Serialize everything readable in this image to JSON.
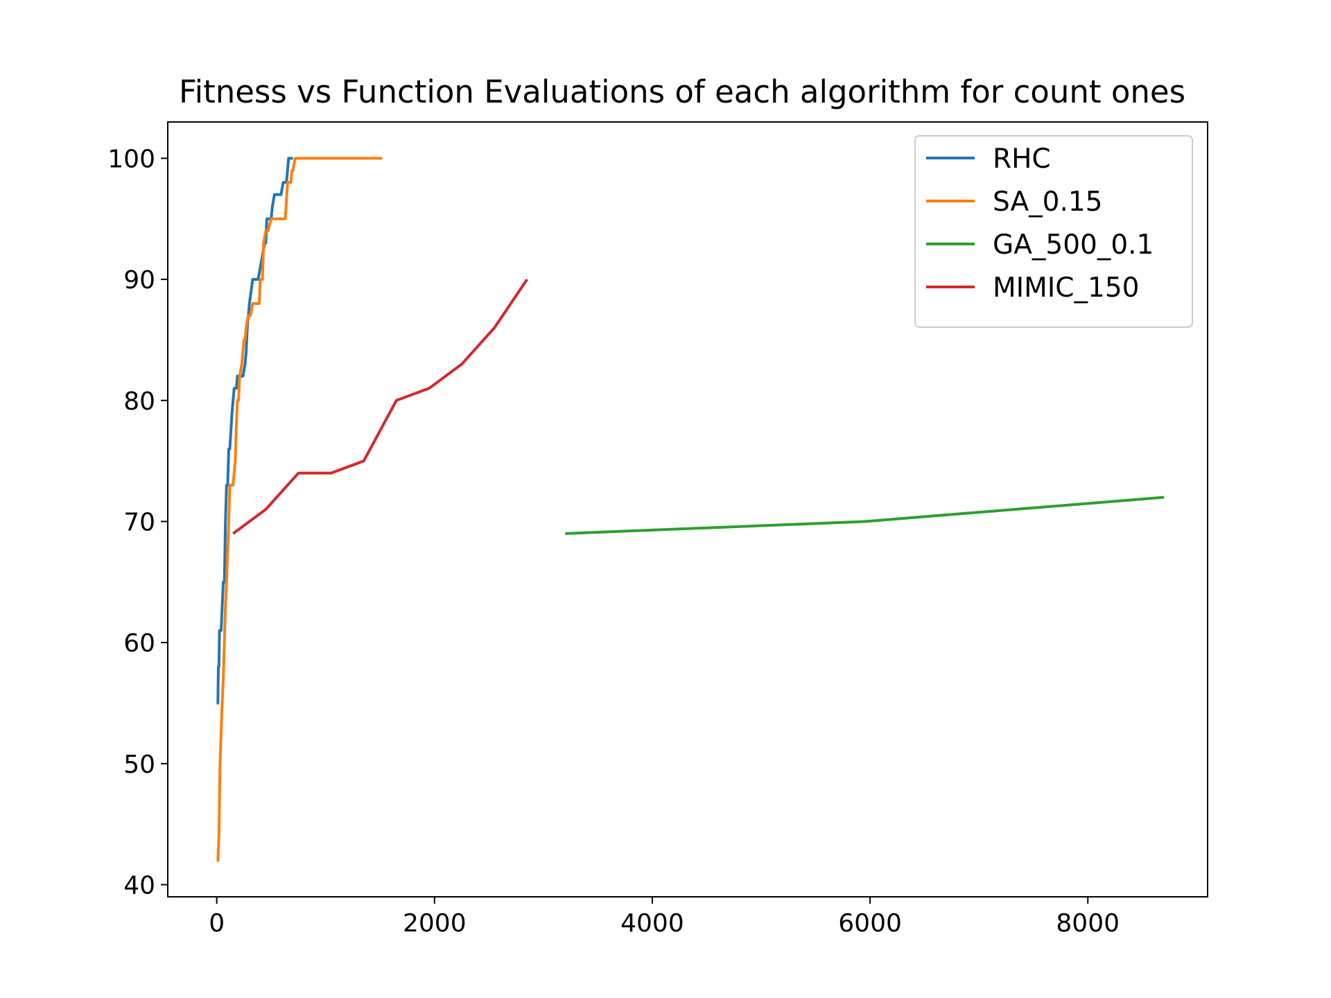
{
  "chart_data": {
    "type": "line",
    "title": "Fitness vs Function Evaluations of each algorithm for count ones",
    "xlabel": "",
    "ylabel": "",
    "xlim": [
      -450,
      9100
    ],
    "ylim": [
      39,
      103
    ],
    "x_ticks": [
      0,
      2000,
      4000,
      6000,
      8000
    ],
    "x_tick_labels": [
      "0",
      "2000",
      "4000",
      "6000",
      "8000"
    ],
    "y_ticks": [
      40,
      50,
      60,
      70,
      80,
      90,
      100
    ],
    "y_tick_labels": [
      "40",
      "50",
      "60",
      "70",
      "80",
      "90",
      "100"
    ],
    "grid": false,
    "legend": "top-right",
    "series": [
      {
        "name": "RHC",
        "color": "#1f77b4",
        "x": [
          0,
          10,
          15,
          20,
          25,
          40,
          50,
          60,
          70,
          80,
          90,
          100,
          110,
          120,
          140,
          150,
          160,
          170,
          180,
          190,
          210,
          220,
          240,
          260,
          270,
          280,
          290,
          300,
          330,
          350,
          380,
          400,
          420,
          440,
          450,
          460,
          480,
          500,
          510,
          530,
          560,
          590,
          610,
          620,
          640,
          650,
          660,
          700
        ],
        "y": [
          55,
          55,
          58,
          58,
          61,
          61,
          63,
          65,
          65,
          70,
          73,
          73,
          76,
          76,
          79,
          80,
          81,
          81,
          81,
          82,
          82,
          82,
          82,
          83,
          84,
          86,
          87,
          88,
          90,
          90,
          90,
          91,
          92,
          93,
          93,
          95,
          95,
          95,
          96,
          97,
          97,
          97,
          98,
          98,
          98,
          99,
          100,
          100
        ]
      },
      {
        "name": "SA_0.15",
        "color": "#ff7f0e",
        "x": [
          0,
          10,
          20,
          30,
          50,
          60,
          80,
          90,
          110,
          120,
          130,
          150,
          160,
          170,
          180,
          190,
          200,
          210,
          230,
          250,
          260,
          270,
          290,
          310,
          330,
          350,
          360,
          390,
          400,
          420,
          430,
          450,
          470,
          500,
          540,
          580,
          610,
          630,
          650,
          670,
          680,
          690,
          700,
          720,
          750,
          800,
          1000,
          1200,
          1400,
          1520
        ],
        "y": [
          42,
          42,
          44,
          50,
          55,
          57,
          63,
          65,
          70,
          73,
          73,
          73,
          74,
          75,
          78,
          80,
          80,
          82,
          83,
          85,
          85,
          86,
          87,
          87,
          88,
          88,
          88,
          88,
          90,
          90,
          93,
          94,
          94,
          95,
          95,
          95,
          95,
          95,
          98,
          98,
          98,
          99,
          99,
          100,
          100,
          100,
          100,
          100,
          100,
          100
        ]
      },
      {
        "name": "GA_500_0.1",
        "color": "#2ca02c",
        "x": [
          3200,
          5950,
          8700
        ],
        "y": [
          69,
          70,
          72
        ]
      },
      {
        "name": "MIMIC_150",
        "color": "#d62728",
        "x": [
          150,
          450,
          750,
          1050,
          1350,
          1650,
          1950,
          2250,
          2550,
          2850
        ],
        "y": [
          69,
          71,
          74,
          74,
          75,
          80,
          81,
          83,
          86,
          90
        ]
      }
    ]
  }
}
